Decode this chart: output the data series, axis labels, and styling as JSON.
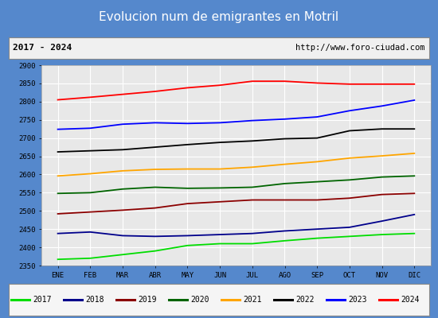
{
  "title": "Evolucion num de emigrantes en Motril",
  "subtitle_left": "2017 - 2024",
  "subtitle_right": "http://www.foro-ciudad.com",
  "xlabel_months": [
    "ENE",
    "FEB",
    "MAR",
    "ABR",
    "MAY",
    "JUN",
    "JUL",
    "AGO",
    "SEP",
    "OCT",
    "NOV",
    "DIC"
  ],
  "ylim": [
    2350,
    2900
  ],
  "yticks": [
    2350,
    2400,
    2450,
    2500,
    2550,
    2600,
    2650,
    2700,
    2750,
    2800,
    2850,
    2900
  ],
  "title_bg": "#4f86c6",
  "title_color": "#ffffff",
  "plot_bg": "#e8e8e8",
  "outer_bg": "#ffffff",
  "legend_bg": "#f5f5f5",
  "series": {
    "2017": {
      "color": "#00dd00",
      "data": [
        2367,
        2370,
        2380,
        2390,
        2405,
        2410,
        2410,
        2418,
        2425,
        2430,
        2435,
        2438
      ]
    },
    "2018": {
      "color": "#00008b",
      "data": [
        2438,
        2442,
        2432,
        2430,
        2432,
        2435,
        2438,
        2445,
        2450,
        2455,
        2472,
        2490
      ]
    },
    "2019": {
      "color": "#8b0000",
      "data": [
        2492,
        2497,
        2502,
        2508,
        2520,
        2525,
        2530,
        2530,
        2530,
        2535,
        2545,
        2548
      ]
    },
    "2020": {
      "color": "#006400",
      "data": [
        2548,
        2550,
        2560,
        2565,
        2562,
        2563,
        2565,
        2575,
        2580,
        2585,
        2593,
        2596
      ]
    },
    "2021": {
      "color": "#ffa500",
      "data": [
        2596,
        2602,
        2610,
        2614,
        2615,
        2615,
        2620,
        2628,
        2635,
        2645,
        2651,
        2658
      ]
    },
    "2022": {
      "color": "#000000",
      "data": [
        2662,
        2665,
        2668,
        2675,
        2682,
        2688,
        2692,
        2698,
        2700,
        2720,
        2725,
        2725
      ]
    },
    "2023": {
      "color": "#0000ff",
      "data": [
        2724,
        2727,
        2738,
        2742,
        2740,
        2742,
        2748,
        2752,
        2758,
        2775,
        2788,
        2804
      ]
    },
    "2024": {
      "color": "#ff0000",
      "data": [
        2805,
        2812,
        2820,
        2828,
        2838,
        2845,
        2856,
        2856,
        2851,
        2848,
        2848,
        2848
      ]
    }
  },
  "years_order": [
    "2017",
    "2018",
    "2019",
    "2020",
    "2021",
    "2022",
    "2023",
    "2024"
  ]
}
